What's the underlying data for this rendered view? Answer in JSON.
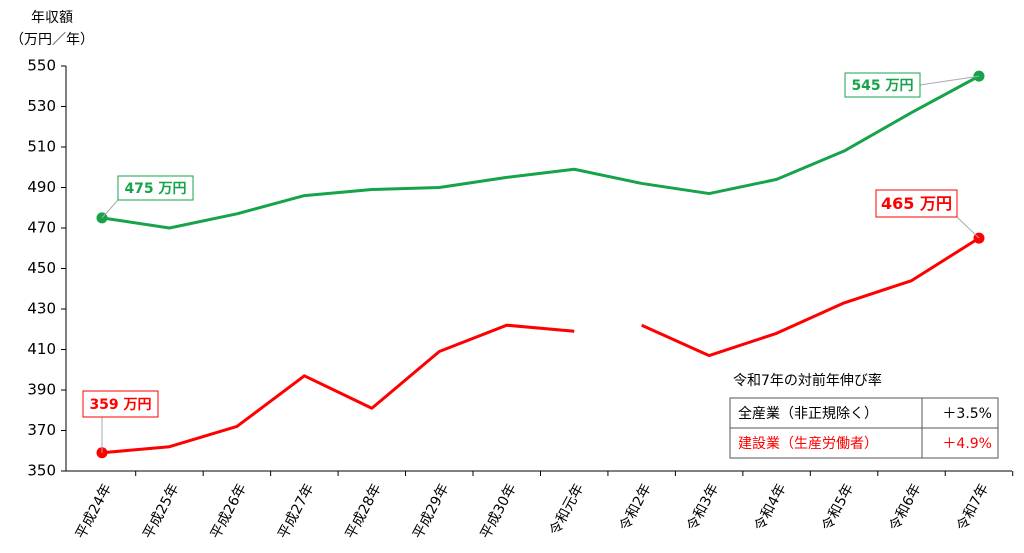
{
  "chart_data": {
    "type": "line",
    "y_label": [
      "年収額",
      "（万円／年）"
    ],
    "categories": [
      "平成24年",
      "平成25年",
      "平成26年",
      "平成27年",
      "平成28年",
      "平成29年",
      "平成30年",
      "令和元年",
      "令和2年",
      "令和3年",
      "令和4年",
      "令和5年",
      "令和6年",
      "令和7年"
    ],
    "series": [
      {
        "name": "全産業（非正規除く）",
        "color": "#16a34a",
        "values": [
          475,
          470,
          477,
          486,
          489,
          490,
          495,
          499,
          492,
          487,
          494,
          508,
          527,
          545
        ],
        "breaks": [],
        "marker_indices": [
          0,
          13
        ]
      },
      {
        "name": "建設業（生産労働者）",
        "color": "#ff0000",
        "values": [
          359,
          362,
          372,
          397,
          381,
          409,
          422,
          419,
          422,
          407,
          418,
          433,
          444,
          465
        ],
        "breaks": [
          7
        ],
        "marker_indices": [
          0,
          13
        ]
      }
    ],
    "annotations": [
      {
        "text": "475 万円",
        "series": 0,
        "index": 0
      },
      {
        "text": "545 万円",
        "series": 0,
        "index": 13
      },
      {
        "text": "359 万円",
        "series": 1,
        "index": 0
      },
      {
        "text": "465 万円",
        "series": 1,
        "index": 13
      }
    ],
    "ylim": [
      350,
      550
    ],
    "yticks": [
      350,
      370,
      390,
      410,
      430,
      450,
      470,
      490,
      510,
      530,
      550
    ],
    "grid": false,
    "growth_table": {
      "title": "令和7年の対前年伸び率",
      "rows": [
        [
          "全産業（非正規除く）",
          "＋3.5%"
        ],
        [
          "建設業（生産労働者）",
          "＋4.9%"
        ]
      ]
    }
  }
}
